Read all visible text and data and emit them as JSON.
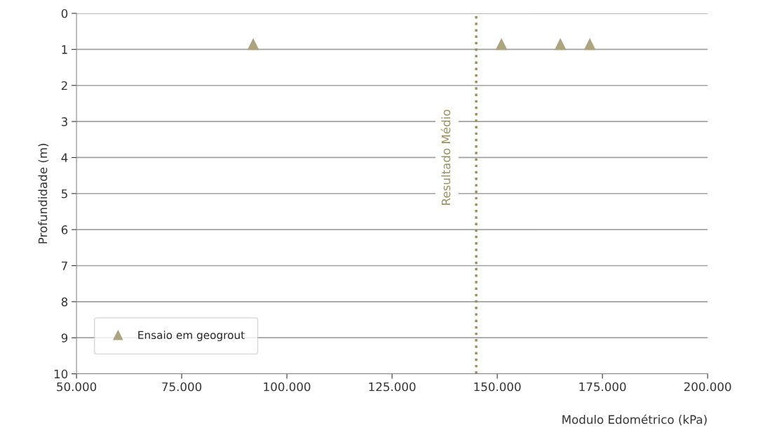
{
  "chart_data": {
    "type": "scatter",
    "xlabel": "Modulo Edométrico (kPa)",
    "ylabel": "Profundidade (m)",
    "series": [
      {
        "name": "Ensaio em geogrout",
        "color": "#aca47e",
        "x": [
          92000,
          151000,
          165000,
          172000
        ],
        "values": [
          0.85,
          0.85,
          0.85,
          0.85
        ]
      }
    ],
    "marker": "triangle",
    "xlim": [
      50000,
      200000
    ],
    "xticks": [
      {
        "value": 50000,
        "label": "50.000"
      },
      {
        "value": 75000,
        "label": "75.000"
      },
      {
        "value": 100000,
        "label": "100.000"
      },
      {
        "value": 125000,
        "label": "125.000"
      },
      {
        "value": 150000,
        "label": "150.000"
      },
      {
        "value": 175000,
        "label": "175.000"
      },
      {
        "value": 200000,
        "label": "200.000"
      }
    ],
    "ylim": [
      10,
      0
    ],
    "yticks": [
      0,
      1,
      2,
      3,
      4,
      5,
      6,
      7,
      8,
      9,
      10
    ],
    "grid": "y",
    "legend": "bottom left",
    "ref_lines": [
      {
        "axis": "x",
        "value": 145000,
        "label": "Resultado Médio",
        "color": "#9b9160",
        "line_style": "dotted"
      }
    ]
  }
}
